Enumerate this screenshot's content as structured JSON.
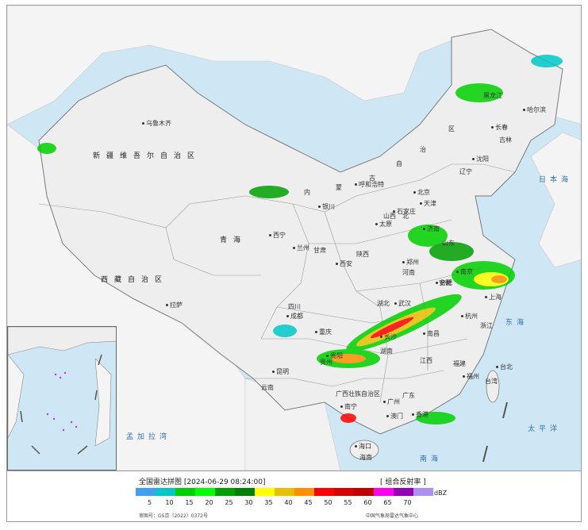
{
  "map": {
    "provinces": {
      "xinjiang": "新疆维吾尔自治区",
      "xizang": "西藏自治区",
      "qinghai": "青海",
      "gansu": "甘肃",
      "neimenggu_nei": "内",
      "neimenggu_meng": "蒙",
      "neimenggu_gu": "古",
      "neimenggu_zi": "自",
      "neimenggu_zhi": "治",
      "neimenggu_qu": "区",
      "heilongjiang": "黑龙江",
      "jilin": "吉林",
      "liaoning": "辽宁",
      "hebei": "北",
      "shanxi": "山西",
      "shaanxi": "陕西",
      "henan": "河南",
      "shandong": "山东",
      "sichuan": "四川",
      "hubei": "湖北",
      "hunan": "湖南",
      "jiangxi": "江西",
      "anhui": "安徽",
      "zhejiang": "浙江",
      "fujian": "福建",
      "guizhou": "贵州",
      "yunnan": "云南",
      "guangxi": "广西壮族自治区",
      "guangdong": "广东",
      "hainan": "海南",
      "taiwan": "台湾"
    },
    "cities": {
      "urumqi": "乌鲁木齐",
      "lhasa": "拉萨",
      "xining": "西宁",
      "lanzhou": "兰州",
      "yinchuan": "银川",
      "hohhot": "呼和浩特",
      "harbin": "哈尔滨",
      "changchun": "长春",
      "shenyang": "沈阳",
      "beijing": "北京",
      "tianjin": "天津",
      "shijiazhuang": "石家庄",
      "taiyuan": "太原",
      "jinan": "济南",
      "zhengzhou": "郑州",
      "xian": "西安",
      "chengdu": "成都",
      "chongqing": "重庆",
      "wuhan": "武汉",
      "hefei": "合肥",
      "nanjing": "南京",
      "shanghai": "上海",
      "hangzhou": "杭州",
      "nanchang": "南昌",
      "changsha": "长沙",
      "fuzhou": "福州",
      "guiyang": "贵阳",
      "kunming": "昆明",
      "nanning": "南宁",
      "guangzhou": "广州",
      "macau": "澳门",
      "hongkong": "香港",
      "haikou": "海口",
      "taipei": "台北"
    },
    "seas": {
      "japan_sea": "日本海",
      "pacific": "太平洋",
      "east_china_sea": "东海",
      "bengal": "孟加拉湾",
      "south_china_sea": "南海"
    }
  },
  "legend": {
    "title": "全国雷达拼图 [2024-06-29 08:24:00]",
    "product": "[ 组合反射率 ]",
    "unit": "dBZ",
    "colors": [
      "#3fa0f0",
      "#00c8c8",
      "#00d000",
      "#00ff00",
      "#00a000",
      "#008000",
      "#ffff00",
      "#e7c000",
      "#ff9000",
      "#ff0000",
      "#d60000",
      "#c00000",
      "#ff00f0",
      "#9600b4",
      "#ad90f0"
    ],
    "ticks": [
      "5",
      "10",
      "15",
      "20",
      "25",
      "30",
      "35",
      "40",
      "45",
      "50",
      "55",
      "60",
      "65",
      "70"
    ],
    "review_number": "审图号：GS京（2022）0372号",
    "source": "中国气象局雷达气象中心"
  }
}
